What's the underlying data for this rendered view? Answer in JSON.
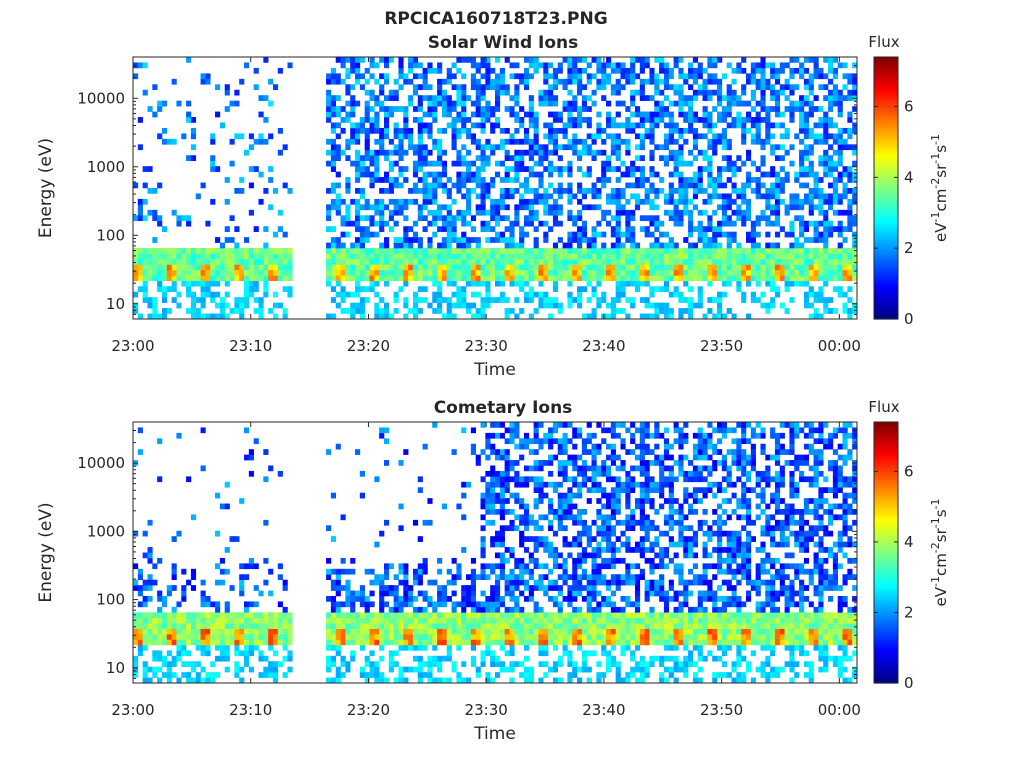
{
  "figure_title": "RPCICA160718T23.PNG",
  "chart_data": [
    {
      "type": "heatmap",
      "title": "Solar Wind Ions",
      "xlabel": "Time",
      "ylabel": "Energy (eV)",
      "x_ticks": [
        "23:00",
        "23:10",
        "23:20",
        "23:30",
        "23:40",
        "23:50",
        "00:00"
      ],
      "x_range_minutes": [
        0,
        61.5
      ],
      "y_scale": "log",
      "y_ticks": [
        "10",
        "100",
        "1000",
        "10000"
      ],
      "y_range": [
        6,
        40000
      ],
      "data_gap_minutes": [
        13.4,
        16.6
      ],
      "colorbar": {
        "title": "Flux",
        "label": "eV-1cm-2sr-1s-1",
        "ticks": [
          "0",
          "2",
          "4",
          "6"
        ],
        "range": [
          0,
          7.4
        ],
        "colormap": "jet"
      },
      "description_of_intensity": {
        "band_eV": [
          20,
          65
        ],
        "band_level": 3.5,
        "band_peak_level": 5.2,
        "low_energy_level": 2.5,
        "high_energy_level": 1.0
      }
    },
    {
      "type": "heatmap",
      "title": "Cometary Ions",
      "xlabel": "Time",
      "ylabel": "Energy (eV)",
      "x_ticks": [
        "23:00",
        "23:10",
        "23:20",
        "23:30",
        "23:40",
        "23:50",
        "00:00"
      ],
      "x_range_minutes": [
        0,
        61.5
      ],
      "y_scale": "log",
      "y_ticks": [
        "10",
        "100",
        "1000",
        "10000"
      ],
      "y_range": [
        6,
        40000
      ],
      "data_gap_minutes": [
        13.4,
        16.6
      ],
      "colorbar": {
        "title": "Flux",
        "label": "eV-1cm-2sr-1s-1",
        "ticks": [
          "0",
          "2",
          "4",
          "6"
        ],
        "range": [
          0,
          7.4
        ],
        "colormap": "jet"
      },
      "description_of_intensity": {
        "band_eV": [
          20,
          65
        ],
        "band_level": 3.8,
        "band_peak_level": 5.5,
        "low_energy_level": 2.5,
        "high_energy_level": 0.8
      }
    }
  ]
}
